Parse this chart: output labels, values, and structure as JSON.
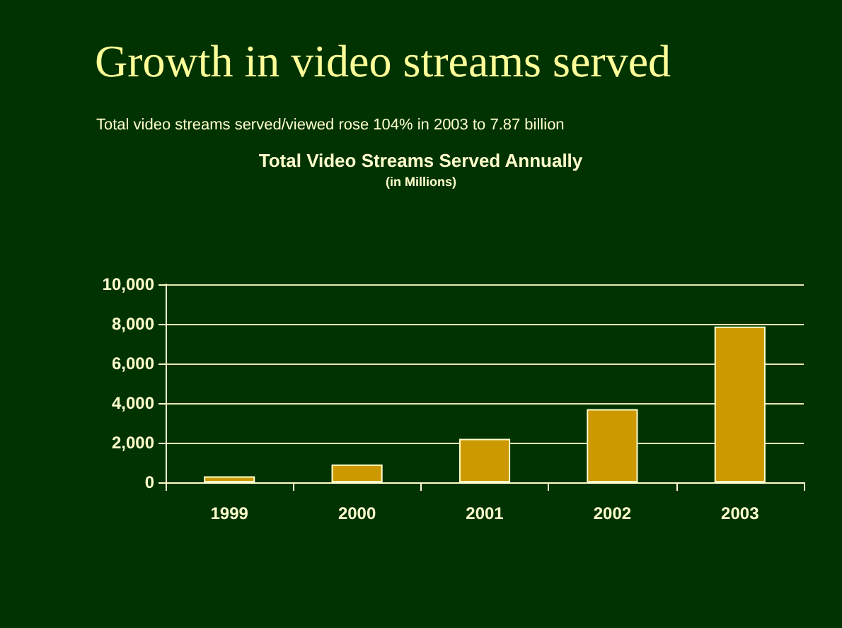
{
  "chart_data": {
    "type": "bar",
    "title": "Growth in video streams served",
    "subtitle": "Total Video Streams Served Annually",
    "annotations": [
      "Total video streams served/viewed rose 104% in 2003 to 7.87 billion",
      "(in Millions)"
    ],
    "categories": [
      "1999",
      "2000",
      "2001",
      "2002",
      "2003"
    ],
    "values": [
      300,
      900,
      2200,
      3700,
      7870
    ],
    "color": "#cc9900",
    "ylim": [
      0,
      10000
    ],
    "yticks": [
      0,
      {
        "value": 2000,
        "label": "2,000"
      },
      {
        "value": 4000,
        "label": "4,000"
      },
      {
        "value": 6000,
        "label": "6,000"
      },
      {
        "value": 8000,
        "label": "8,000"
      },
      {
        "value": 10000,
        "label": "10,000"
      }
    ],
    "grid": "y"
  }
}
